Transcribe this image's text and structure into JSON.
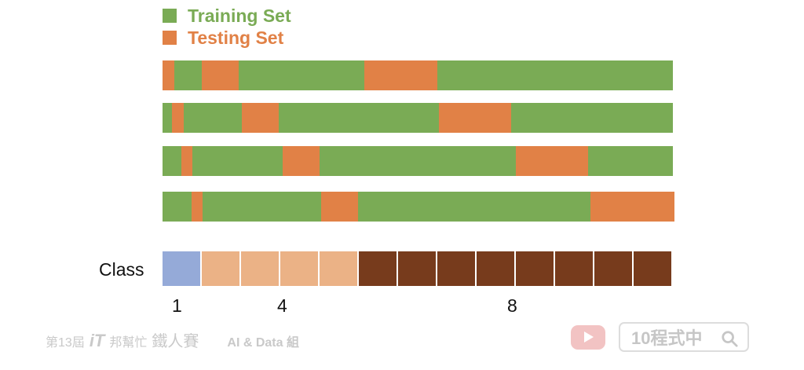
{
  "legend": {
    "training": {
      "label": "Training Set",
      "color": "#7aab55"
    },
    "testing": {
      "label": "Testing Set",
      "color": "#e18146"
    }
  },
  "folds": [
    [
      [
        "test",
        2.3
      ],
      [
        "train",
        5.4
      ],
      [
        "test",
        7.2
      ],
      [
        "train",
        24.7
      ],
      [
        "test",
        14.3
      ],
      [
        "train",
        46.1
      ]
    ],
    [
      [
        "train",
        1.8
      ],
      [
        "test",
        2.3
      ],
      [
        "train",
        11.5
      ],
      [
        "test",
        7.1
      ],
      [
        "train",
        31.4
      ],
      [
        "test",
        14.2
      ],
      [
        "train",
        31.7
      ]
    ],
    [
      [
        "train",
        3.7
      ],
      [
        "test",
        2.2
      ],
      [
        "train",
        17.6
      ],
      [
        "test",
        7.3
      ],
      [
        "train",
        38.4
      ],
      [
        "test",
        14.2
      ],
      [
        "train",
        16.6
      ]
    ],
    [
      [
        "train",
        5.7
      ],
      [
        "test",
        2.2
      ],
      [
        "train",
        23.1
      ],
      [
        "test",
        7.2
      ],
      [
        "train",
        45.4
      ],
      [
        "test",
        16.4
      ]
    ]
  ],
  "class_bar": {
    "label": "Class",
    "cells": [
      {
        "class": "1",
        "color": "#95aad8"
      },
      {
        "class": "4",
        "color": "#ebb286"
      },
      {
        "class": "4",
        "color": "#ebb286"
      },
      {
        "class": "4",
        "color": "#ebb286"
      },
      {
        "class": "4",
        "color": "#ebb286"
      },
      {
        "class": "8",
        "color": "#773b1c"
      },
      {
        "class": "8",
        "color": "#773b1c"
      },
      {
        "class": "8",
        "color": "#773b1c"
      },
      {
        "class": "8",
        "color": "#773b1c"
      },
      {
        "class": "8",
        "color": "#773b1c"
      },
      {
        "class": "8",
        "color": "#773b1c"
      },
      {
        "class": "8",
        "color": "#773b1c"
      },
      {
        "class": "8",
        "color": "#773b1c"
      }
    ],
    "counts": [
      "1",
      "4",
      "8"
    ]
  },
  "watermark": {
    "prefix": "第13屆",
    "it": "iT",
    "bang": "邦幫忙",
    "event": "鐵人賽",
    "category": "AI & Data 組",
    "channel": "10程式中",
    "icons": [
      "youtube-icon",
      "search-icon"
    ]
  }
}
